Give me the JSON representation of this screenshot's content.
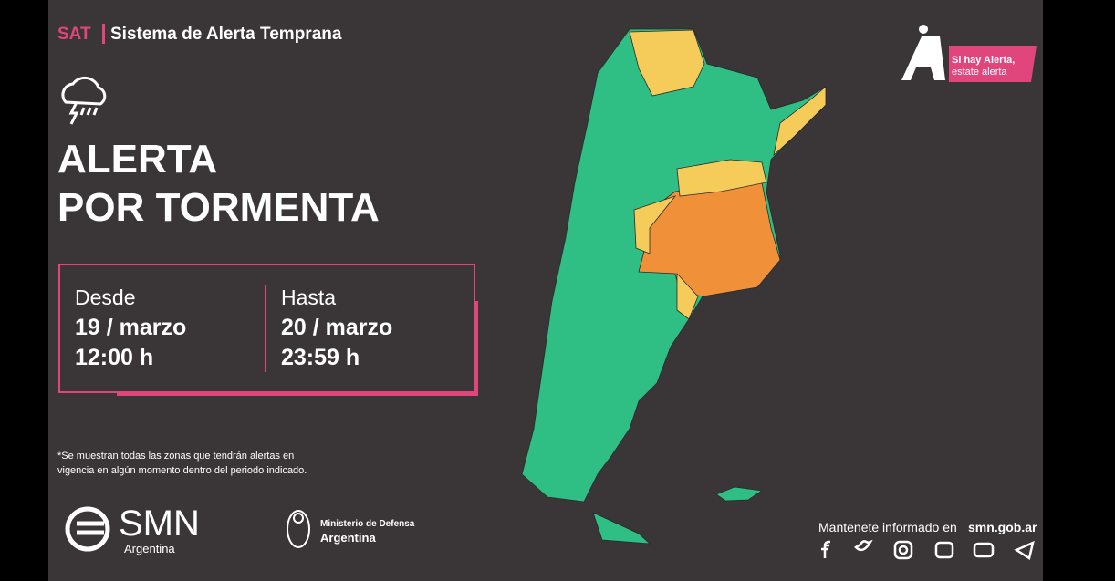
{
  "header": {
    "sat": "SAT",
    "system": "Sistema de Alerta Temprana"
  },
  "alert": {
    "line1": "ALERTA",
    "line2": "POR TORMENTA"
  },
  "period": {
    "from": {
      "label": "Desde",
      "date": "19 / marzo",
      "time": "12:00 h"
    },
    "to": {
      "label": "Hasta",
      "date": "20 / marzo",
      "time": "23:59 h"
    }
  },
  "note": {
    "line1": "*Se muestran todas las zonas que tendrán alertas en",
    "line2": "vigencia en algún momento dentro del periodo indicado."
  },
  "badge": {
    "line1": "Si hay Alerta,",
    "line2": "estate alerta"
  },
  "logos": {
    "smn": "SMN",
    "smn_country": "Argentina",
    "ministry": "Ministerio de Defensa",
    "ministry_country": "Argentina"
  },
  "footer": {
    "text": "Mantenete informado en",
    "url": "smn.gob.ar"
  }
}
